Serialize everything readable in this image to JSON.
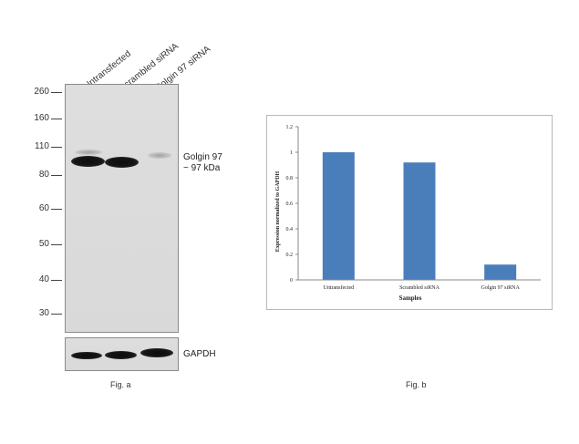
{
  "fig_a": {
    "lane_labels": [
      "Untransfected",
      "Scrambled siRNA",
      "Golgin 97 siRNA"
    ],
    "markers": [
      "260",
      "160",
      "110",
      "80",
      "60",
      "50",
      "40",
      "30"
    ],
    "target_label": "Golgin 97",
    "target_size": "~ 97 kDa",
    "loading_control": "GAPDH",
    "caption": "Fig. a"
  },
  "fig_b": {
    "caption": "Fig. b"
  },
  "chart_data": {
    "type": "bar",
    "categories": [
      "Untransfected",
      "Scrambled siRNA",
      "Golgin 97 siRNA"
    ],
    "values": [
      1.0,
      0.92,
      0.12
    ],
    "title": "",
    "xlabel": "Samples",
    "ylabel": "Expression normalized to GAPDH",
    "ylim": [
      0,
      1.2
    ],
    "yticks": [
      "0",
      "0.2",
      "0.4",
      "0.6",
      "0.8",
      "1",
      "1.2"
    ],
    "bar_color": "#4a7ebb",
    "grid": false,
    "legend": "none"
  }
}
